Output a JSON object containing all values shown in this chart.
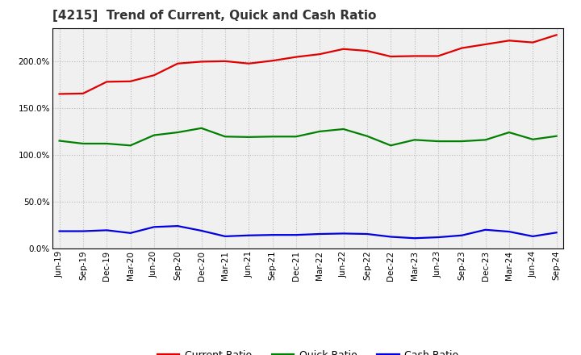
{
  "title": "[4215]  Trend of Current, Quick and Cash Ratio",
  "x_labels": [
    "Jun-19",
    "Sep-19",
    "Dec-19",
    "Mar-20",
    "Jun-20",
    "Sep-20",
    "Dec-20",
    "Mar-21",
    "Jun-21",
    "Sep-21",
    "Dec-21",
    "Mar-22",
    "Jun-22",
    "Sep-22",
    "Dec-22",
    "Mar-23",
    "Jun-23",
    "Sep-23",
    "Dec-23",
    "Mar-24",
    "Jun-24",
    "Sep-24"
  ],
  "current_ratio": [
    165.0,
    165.5,
    178.0,
    178.5,
    185.0,
    197.5,
    199.5,
    200.0,
    197.5,
    200.5,
    204.5,
    207.5,
    213.0,
    211.0,
    205.0,
    205.5,
    205.5,
    214.0,
    218.0,
    222.0,
    220.0,
    228.0
  ],
  "quick_ratio": [
    115.0,
    112.0,
    112.0,
    110.0,
    121.0,
    124.0,
    128.5,
    119.5,
    119.0,
    119.5,
    119.5,
    125.0,
    127.5,
    120.0,
    110.0,
    116.0,
    114.5,
    114.5,
    116.0,
    124.0,
    116.5,
    120.0
  ],
  "cash_ratio": [
    18.5,
    18.5,
    19.5,
    16.5,
    23.0,
    24.0,
    19.0,
    13.0,
    14.0,
    14.5,
    14.5,
    15.5,
    16.0,
    15.5,
    12.5,
    11.0,
    12.0,
    14.0,
    20.0,
    18.0,
    13.0,
    17.0
  ],
  "current_color": "#e00000",
  "quick_color": "#008000",
  "cash_color": "#0000e0",
  "ylim": [
    0,
    235
  ],
  "yticks": [
    0,
    50,
    100,
    150,
    200
  ],
  "background_color": "#ffffff",
  "plot_bg_color": "#f0f0f0",
  "grid_color": "#bbbbbb",
  "line_width": 1.6,
  "title_fontsize": 11,
  "legend_fontsize": 9,
  "tick_fontsize": 7.5,
  "title_color": "#333333"
}
